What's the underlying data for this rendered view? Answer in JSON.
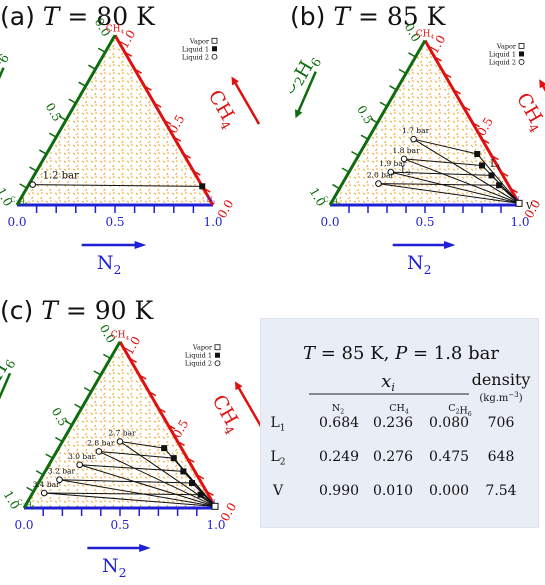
{
  "panels": [
    {
      "tag": "(a)",
      "temp": "80",
      "unit": "K",
      "legend": [
        "Vapor",
        "Liquid 1",
        "Liquid 2"
      ],
      "pressure_labels": [
        "1.2 bar"
      ],
      "tie_lines": [
        {
          "a": [
            0.02,
            0.12,
            0.86
          ],
          "b": [
            0.89,
            0.11,
            0.0
          ]
        }
      ],
      "liquid1_points": [
        [
          0.89,
          0.11,
          0.0
        ]
      ],
      "liquid2_points": [
        [
          0.02,
          0.12,
          0.86
        ]
      ],
      "vapor_points": [],
      "phase_labels": []
    },
    {
      "tag": "(b)",
      "temp": "85",
      "unit": "K",
      "legend": [
        "Vapor",
        "Liquid 1",
        "Liquid 2"
      ],
      "pressure_labels": [
        "1.7 bar",
        "1.8 bar",
        "1.9 bar",
        "2.0 bar"
      ],
      "tie_lines": [
        {
          "a": [
            0.24,
            0.4,
            0.36
          ],
          "b": [
            0.62,
            0.31,
            0.07
          ]
        },
        {
          "a": [
            0.25,
            0.28,
            0.47
          ],
          "b": [
            0.68,
            0.24,
            0.08
          ]
        },
        {
          "a": [
            0.22,
            0.2,
            0.58
          ],
          "b": [
            0.76,
            0.18,
            0.06
          ]
        },
        {
          "a": [
            0.19,
            0.13,
            0.68
          ],
          "b": [
            0.83,
            0.12,
            0.05
          ]
        },
        {
          "a": [
            0.24,
            0.4,
            0.36
          ],
          "b": [
            0.99,
            0.01,
            0.0
          ]
        },
        {
          "a": [
            0.25,
            0.28,
            0.47
          ],
          "b": [
            0.99,
            0.01,
            0.0
          ]
        },
        {
          "a": [
            0.22,
            0.2,
            0.58
          ],
          "b": [
            0.99,
            0.01,
            0.0
          ]
        },
        {
          "a": [
            0.19,
            0.13,
            0.68
          ],
          "b": [
            0.99,
            0.01,
            0.0
          ]
        },
        {
          "a": [
            0.62,
            0.31,
            0.07
          ],
          "b": [
            0.99,
            0.01,
            0.0
          ]
        },
        {
          "a": [
            0.68,
            0.24,
            0.08
          ],
          "b": [
            0.99,
            0.01,
            0.0
          ]
        },
        {
          "a": [
            0.76,
            0.18,
            0.06
          ],
          "b": [
            0.99,
            0.01,
            0.0
          ]
        },
        {
          "a": [
            0.83,
            0.12,
            0.05
          ],
          "b": [
            0.99,
            0.01,
            0.0
          ]
        }
      ],
      "liquid1_points": [
        [
          0.62,
          0.31,
          0.07
        ],
        [
          0.68,
          0.24,
          0.08
        ],
        [
          0.76,
          0.18,
          0.06
        ],
        [
          0.83,
          0.12,
          0.05
        ]
      ],
      "liquid2_points": [
        [
          0.24,
          0.4,
          0.36
        ],
        [
          0.25,
          0.28,
          0.47
        ],
        [
          0.22,
          0.2,
          0.58
        ],
        [
          0.19,
          0.13,
          0.68
        ]
      ],
      "vapor_points": [
        [
          0.99,
          0.01,
          0.0
        ]
      ],
      "phase_labels": [
        "L1",
        "L2",
        "V"
      ]
    },
    {
      "tag": "(c)",
      "temp": "90",
      "unit": "K",
      "legend": [
        "Vapor",
        "Liquid 1",
        "Liquid 2"
      ],
      "pressure_labels": [
        "2.7 bar",
        "2.8 bar",
        "3.0 bar",
        "3.2 bar",
        "3.4 bar"
      ],
      "tie_lines": [
        {
          "a": [
            0.3,
            0.4,
            0.3
          ],
          "b": [
            0.55,
            0.36,
            0.09
          ]
        },
        {
          "a": [
            0.22,
            0.34,
            0.44
          ],
          "b": [
            0.63,
            0.3,
            0.07
          ]
        },
        {
          "a": [
            0.16,
            0.26,
            0.58
          ],
          "b": [
            0.72,
            0.22,
            0.06
          ]
        },
        {
          "a": [
            0.1,
            0.17,
            0.73
          ],
          "b": [
            0.8,
            0.15,
            0.05
          ]
        },
        {
          "a": [
            0.06,
            0.09,
            0.85
          ],
          "b": [
            0.88,
            0.08,
            0.04
          ]
        },
        {
          "a": [
            0.3,
            0.4,
            0.3
          ],
          "b": [
            0.99,
            0.01,
            0.0
          ]
        },
        {
          "a": [
            0.22,
            0.34,
            0.44
          ],
          "b": [
            0.99,
            0.01,
            0.0
          ]
        },
        {
          "a": [
            0.16,
            0.26,
            0.58
          ],
          "b": [
            0.99,
            0.01,
            0.0
          ]
        },
        {
          "a": [
            0.1,
            0.17,
            0.73
          ],
          "b": [
            0.99,
            0.01,
            0.0
          ]
        },
        {
          "a": [
            0.06,
            0.09,
            0.85
          ],
          "b": [
            0.99,
            0.01,
            0.0
          ]
        },
        {
          "a": [
            0.55,
            0.36,
            0.09
          ],
          "b": [
            0.99,
            0.01,
            0.0
          ]
        },
        {
          "a": [
            0.63,
            0.3,
            0.07
          ],
          "b": [
            0.99,
            0.01,
            0.0
          ]
        },
        {
          "a": [
            0.72,
            0.22,
            0.06
          ],
          "b": [
            0.99,
            0.01,
            0.0
          ]
        },
        {
          "a": [
            0.8,
            0.15,
            0.05
          ],
          "b": [
            0.99,
            0.01,
            0.0
          ]
        },
        {
          "a": [
            0.88,
            0.08,
            0.04
          ],
          "b": [
            0.99,
            0.01,
            0.0
          ]
        }
      ],
      "liquid1_points": [
        [
          0.55,
          0.36,
          0.09
        ],
        [
          0.63,
          0.3,
          0.07
        ],
        [
          0.72,
          0.22,
          0.06
        ],
        [
          0.8,
          0.15,
          0.05
        ],
        [
          0.88,
          0.08,
          0.04
        ]
      ],
      "liquid2_points": [
        [
          0.3,
          0.4,
          0.3
        ],
        [
          0.22,
          0.34,
          0.44
        ],
        [
          0.16,
          0.26,
          0.58
        ],
        [
          0.1,
          0.17,
          0.73
        ],
        [
          0.06,
          0.09,
          0.85
        ]
      ],
      "vapor_points": [
        [
          0.99,
          0.01,
          0.0
        ]
      ],
      "phase_labels": []
    }
  ],
  "axes": {
    "n2": {
      "name": "N2",
      "sub": "2",
      "base": "N",
      "color": "#1f1fd6",
      "ticks": [
        "0.0",
        "0.5",
        "1.0"
      ]
    },
    "ch4": {
      "name": "CH4",
      "base": "CH",
      "sub": "4",
      "color": "#e01010",
      "ticks": [
        "0.0",
        "0.5",
        "1.0"
      ]
    },
    "c2h6": {
      "name": "C2H6",
      "color": "#0e6b0e",
      "ticks": [
        "0.0",
        "0.5",
        "1.0"
      ]
    },
    "vertex_labels": {
      "top": "CH4",
      "left": "C2H6",
      "right": "N2"
    }
  },
  "colors": {
    "ch4": "#e01010",
    "c2h6": "#0e6b0e",
    "n2": "#1f1fd6",
    "pattern": "#f0a020"
  },
  "table": {
    "title_T": "85",
    "title_P": "1.8",
    "title_unit_T": "K",
    "title_unit_P": "bar",
    "header_xi": "x",
    "header_density": "density",
    "header_density_unit": "(kg.m−3)",
    "col_headers": [
      "N2",
      "CH4",
      "C2H6"
    ],
    "rows": [
      {
        "label": "L1",
        "values": [
          "0.684",
          "0.236",
          "0.080",
          "706"
        ]
      },
      {
        "label": "L2",
        "values": [
          "0.249",
          "0.276",
          "0.475",
          "648"
        ]
      },
      {
        "label": "V",
        "values": [
          "0.990",
          "0.010",
          "0.000",
          "7.54"
        ]
      }
    ]
  }
}
